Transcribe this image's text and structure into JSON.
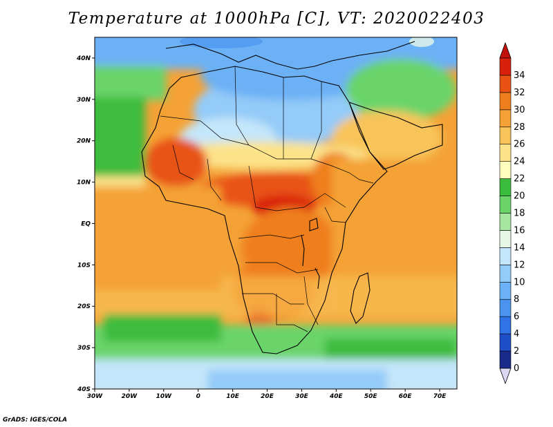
{
  "title": "Temperature at 1000hPa [C], VT: 2020022403",
  "credit": "GrADS: IGES/COLA",
  "map": {
    "lon_range": [
      -30,
      75
    ],
    "lat_range": [
      -40,
      45
    ],
    "lat_ticks": [
      {
        "value": 40,
        "label": "40N"
      },
      {
        "value": 30,
        "label": "30N"
      },
      {
        "value": 20,
        "label": "20N"
      },
      {
        "value": 10,
        "label": "10N"
      },
      {
        "value": 0,
        "label": "EQ"
      },
      {
        "value": -10,
        "label": "10S"
      },
      {
        "value": -20,
        "label": "20S"
      },
      {
        "value": -30,
        "label": "30S"
      },
      {
        "value": -40,
        "label": "40S"
      }
    ],
    "lon_ticks": [
      {
        "value": -30,
        "label": "30W"
      },
      {
        "value": -20,
        "label": "20W"
      },
      {
        "value": -10,
        "label": "10W"
      },
      {
        "value": 0,
        "label": "0"
      },
      {
        "value": 10,
        "label": "10E"
      },
      {
        "value": 20,
        "label": "20E"
      },
      {
        "value": 30,
        "label": "30E"
      },
      {
        "value": 40,
        "label": "40E"
      },
      {
        "value": 50,
        "label": "50E"
      },
      {
        "value": 60,
        "label": "60E"
      },
      {
        "value": 70,
        "label": "70E"
      }
    ]
  },
  "colorbar": {
    "levels": [
      0,
      2,
      4,
      6,
      8,
      10,
      12,
      14,
      16,
      18,
      20,
      22,
      24,
      26,
      28,
      30,
      32,
      34
    ],
    "colors": [
      "#1a2a8a",
      "#1f4fc8",
      "#2f73e6",
      "#4a94f0",
      "#6cb1f5",
      "#94cbf8",
      "#c4e6fa",
      "#e6f7e6",
      "#a6e6a0",
      "#6ad46a",
      "#3cbc3c",
      "#fdfdbe",
      "#fce38a",
      "#f8c45a",
      "#f4a236",
      "#ef7f1c",
      "#e85212",
      "#d9200c"
    ],
    "under_color": "#dcd8f4",
    "over_color": "#c2110a"
  }
}
